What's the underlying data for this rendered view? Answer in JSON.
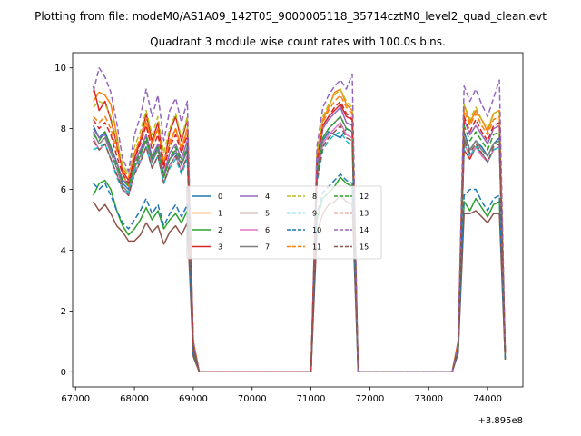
{
  "chart_data": {
    "type": "line",
    "suptitle": "Plotting from file: modeM0/AS1A09_142T05_9000005118_35714cztM0_level2_quad_clean.evt",
    "title": "Quadrant 3 module wise count rates with 100.0s bins.",
    "xlabel": "",
    "ylabel": "",
    "x_offset_label": "+3.895e8",
    "xlim": [
      66950,
      74600
    ],
    "ylim": [
      -0.5,
      10.5
    ],
    "xticks": [
      67000,
      68000,
      69000,
      70000,
      71000,
      72000,
      73000,
      74000
    ],
    "yticks": [
      0,
      2,
      4,
      6,
      8,
      10
    ],
    "legend_location": "center",
    "legend_columns": 4,
    "x": [
      67300,
      67400,
      67500,
      67600,
      67700,
      67800,
      67900,
      68000,
      68100,
      68200,
      68300,
      68400,
      68500,
      68600,
      68700,
      68800,
      68900,
      69000,
      69100,
      71000,
      71100,
      71200,
      71300,
      71400,
      71500,
      71600,
      71700,
      71800,
      73400,
      73500,
      73600,
      73700,
      73800,
      73900,
      74000,
      74100,
      74200,
      74300
    ],
    "series": [
      {
        "name": "0",
        "color": "#1f77b4",
        "dash": "solid",
        "values": [
          8.1,
          7.7,
          7.9,
          7.4,
          6.9,
          6.2,
          6.0,
          6.9,
          7.3,
          7.6,
          7.0,
          7.4,
          6.5,
          7.0,
          7.2,
          6.8,
          7.3,
          0.8,
          0.0,
          0.0,
          6.6,
          7.6,
          7.9,
          7.8,
          7.7,
          8.0,
          7.9,
          0.0,
          0.0,
          0.9,
          7.9,
          7.3,
          7.6,
          7.4,
          7.1,
          7.5,
          7.7,
          0.6
        ]
      },
      {
        "name": "1",
        "color": "#ff7f0e",
        "dash": "solid",
        "values": [
          8.9,
          9.2,
          9.1,
          8.8,
          7.8,
          6.5,
          6.1,
          7.2,
          7.6,
          8.2,
          7.5,
          8.0,
          6.9,
          7.5,
          8.0,
          7.3,
          8.0,
          1.0,
          0.0,
          0.0,
          7.2,
          8.3,
          8.7,
          9.2,
          9.3,
          8.8,
          8.6,
          0.0,
          0.0,
          1.0,
          8.8,
          8.2,
          8.6,
          8.3,
          7.9,
          8.5,
          8.6,
          0.7
        ]
      },
      {
        "name": "2",
        "color": "#2ca02c",
        "dash": "solid",
        "values": [
          5.8,
          6.2,
          6.3,
          6.0,
          5.3,
          4.8,
          4.5,
          4.7,
          5.0,
          5.4,
          5.0,
          5.3,
          4.7,
          5.0,
          5.2,
          4.9,
          5.3,
          0.6,
          0.0,
          0.0,
          5.0,
          5.7,
          5.9,
          6.1,
          6.4,
          6.2,
          6.1,
          0.0,
          0.0,
          0.7,
          5.6,
          5.3,
          5.7,
          5.4,
          5.1,
          5.5,
          5.6,
          0.4
        ]
      },
      {
        "name": "3",
        "color": "#d62728",
        "dash": "solid",
        "values": [
          9.4,
          8.6,
          8.9,
          8.3,
          7.5,
          6.6,
          6.3,
          7.0,
          7.6,
          8.5,
          7.6,
          8.2,
          6.8,
          7.9,
          8.4,
          7.6,
          8.3,
          1.0,
          0.0,
          0.0,
          7.0,
          8.1,
          8.4,
          8.6,
          8.8,
          8.4,
          8.3,
          0.0,
          0.0,
          1.0,
          7.3,
          7.0,
          7.4,
          7.2,
          6.9,
          7.3,
          7.4,
          0.6
        ]
      },
      {
        "name": "4",
        "color": "#9467bd",
        "dash": "solid",
        "values": [
          8.0,
          7.7,
          7.8,
          7.3,
          6.9,
          6.3,
          6.2,
          6.9,
          7.3,
          7.8,
          7.1,
          7.5,
          6.5,
          7.2,
          7.5,
          7.0,
          7.6,
          0.8,
          0.0,
          0.0,
          6.7,
          8.0,
          8.3,
          8.5,
          8.7,
          8.2,
          8.1,
          0.0,
          0.0,
          0.9,
          8.3,
          7.8,
          8.1,
          7.8,
          7.5,
          8.0,
          8.1,
          0.6
        ]
      },
      {
        "name": "5",
        "color": "#8c564b",
        "dash": "solid",
        "values": [
          5.6,
          5.3,
          5.5,
          5.2,
          4.8,
          4.6,
          4.3,
          4.3,
          4.5,
          4.9,
          4.6,
          4.8,
          4.2,
          4.6,
          4.8,
          4.5,
          4.9,
          0.5,
          0.0,
          0.0,
          4.6,
          5.2,
          5.5,
          5.6,
          5.8,
          5.6,
          5.5,
          0.0,
          0.0,
          0.6,
          5.2,
          5.2,
          5.3,
          5.1,
          4.9,
          5.2,
          5.2,
          0.4
        ]
      },
      {
        "name": "6",
        "color": "#e377c2",
        "dash": "solid",
        "values": [
          7.7,
          7.3,
          7.5,
          7.0,
          6.5,
          6.0,
          5.8,
          6.5,
          6.9,
          7.4,
          6.7,
          7.1,
          6.2,
          6.8,
          7.1,
          6.6,
          7.1,
          0.8,
          0.0,
          0.0,
          6.3,
          7.5,
          7.8,
          8.0,
          8.2,
          7.8,
          7.7,
          0.0,
          0.0,
          0.8,
          7.5,
          7.1,
          7.4,
          7.1,
          6.9,
          7.3,
          7.4,
          0.6
        ]
      },
      {
        "name": "7",
        "color": "#7f7f7f",
        "dash": "solid",
        "values": [
          7.9,
          7.5,
          7.7,
          7.2,
          6.7,
          6.1,
          5.9,
          6.7,
          7.1,
          7.6,
          6.9,
          7.3,
          6.4,
          7.0,
          7.3,
          6.8,
          7.4,
          0.8,
          0.0,
          0.0,
          6.5,
          7.7,
          8.0,
          8.2,
          8.4,
          8.0,
          7.9,
          0.0,
          0.0,
          0.9,
          7.7,
          7.3,
          7.6,
          7.3,
          7.1,
          7.5,
          7.6,
          0.6
        ]
      },
      {
        "name": "8",
        "color": "#bcbd22",
        "dash": "dashed",
        "values": [
          8.7,
          8.9,
          8.8,
          8.4,
          7.6,
          6.8,
          6.5,
          7.4,
          7.9,
          8.6,
          7.8,
          8.4,
          7.2,
          8.0,
          8.5,
          7.7,
          8.4,
          1.0,
          0.0,
          0.0,
          7.2,
          8.4,
          8.8,
          9.1,
          9.3,
          8.9,
          8.7,
          0.0,
          0.0,
          1.0,
          8.8,
          8.3,
          8.7,
          8.3,
          8.0,
          8.5,
          8.6,
          0.7
        ]
      },
      {
        "name": "9",
        "color": "#17becf",
        "dash": "dashed",
        "values": [
          7.3,
          7.4,
          7.5,
          7.0,
          6.4,
          6.0,
          5.9,
          6.6,
          7.0,
          7.4,
          6.7,
          7.1,
          6.2,
          6.7,
          7.0,
          6.5,
          7.0,
          0.8,
          0.0,
          0.0,
          6.2,
          7.3,
          7.6,
          7.8,
          7.9,
          7.6,
          7.4,
          0.0,
          0.0,
          0.8,
          7.5,
          7.1,
          7.4,
          7.2,
          6.9,
          7.3,
          7.4,
          0.6
        ]
      },
      {
        "name": "10",
        "color": "#1f77b4",
        "dash": "dashed",
        "values": [
          6.2,
          6.0,
          6.2,
          5.8,
          5.3,
          4.9,
          4.7,
          5.0,
          5.3,
          5.7,
          5.2,
          5.5,
          4.8,
          5.2,
          5.5,
          5.1,
          5.5,
          0.6,
          0.0,
          0.0,
          5.2,
          5.9,
          6.1,
          6.3,
          6.5,
          6.3,
          6.2,
          0.0,
          0.0,
          0.7,
          5.8,
          6.0,
          6.0,
          5.6,
          5.3,
          5.7,
          5.8,
          0.4
        ]
      },
      {
        "name": "11",
        "color": "#ff7f0e",
        "dash": "dashed",
        "values": [
          8.4,
          8.2,
          8.4,
          8.0,
          7.3,
          6.7,
          6.4,
          7.2,
          7.7,
          8.3,
          7.5,
          8.0,
          6.9,
          7.6,
          8.0,
          7.4,
          8.0,
          0.9,
          0.0,
          0.0,
          7.0,
          8.2,
          8.6,
          8.9,
          9.1,
          8.7,
          8.5,
          0.0,
          0.0,
          0.9,
          8.6,
          8.1,
          8.5,
          8.1,
          7.8,
          8.3,
          8.4,
          0.6
        ]
      },
      {
        "name": "12",
        "color": "#2ca02c",
        "dash": "dashed",
        "values": [
          7.8,
          7.6,
          7.9,
          7.4,
          6.8,
          6.3,
          6.1,
          6.8,
          7.2,
          7.7,
          7.0,
          7.4,
          6.4,
          7.0,
          7.4,
          6.9,
          7.4,
          0.8,
          0.0,
          0.0,
          6.5,
          7.7,
          8.0,
          8.2,
          8.4,
          8.0,
          7.9,
          0.0,
          0.0,
          0.8,
          8.1,
          7.6,
          7.9,
          7.6,
          7.3,
          7.8,
          7.9,
          0.6
        ]
      },
      {
        "name": "13",
        "color": "#d62728",
        "dash": "dashed",
        "values": [
          8.3,
          8.0,
          8.2,
          7.8,
          7.1,
          6.5,
          6.2,
          7.0,
          7.5,
          8.1,
          7.3,
          7.8,
          6.7,
          7.4,
          7.8,
          7.2,
          7.8,
          0.9,
          0.0,
          0.0,
          6.9,
          8.1,
          8.4,
          8.7,
          8.9,
          8.5,
          8.3,
          0.0,
          0.0,
          0.9,
          8.4,
          7.9,
          8.3,
          7.9,
          7.6,
          8.1,
          8.2,
          0.6
        ]
      },
      {
        "name": "14",
        "color": "#9467bd",
        "dash": "dashed",
        "values": [
          9.2,
          10.0,
          9.7,
          9.2,
          8.2,
          7.0,
          6.6,
          7.8,
          8.4,
          9.3,
          8.4,
          9.1,
          7.6,
          8.6,
          9.0,
          8.2,
          8.9,
          1.0,
          0.0,
          0.0,
          7.4,
          8.7,
          9.1,
          9.4,
          9.6,
          9.3,
          9.8,
          0.0,
          0.0,
          1.0,
          9.4,
          8.9,
          9.3,
          8.8,
          8.4,
          9.0,
          9.6,
          0.7
        ]
      },
      {
        "name": "15",
        "color": "#8c564b",
        "dash": "dashed",
        "values": [
          7.6,
          7.3,
          7.5,
          7.0,
          6.5,
          6.0,
          5.8,
          6.5,
          6.9,
          7.4,
          6.7,
          7.1,
          6.2,
          6.8,
          7.1,
          6.6,
          7.1,
          0.8,
          0.0,
          0.0,
          6.3,
          7.4,
          7.7,
          7.9,
          8.1,
          7.7,
          7.6,
          0.0,
          0.0,
          0.8,
          7.6,
          7.2,
          7.5,
          7.2,
          6.9,
          7.4,
          7.5,
          0.6
        ]
      }
    ]
  }
}
